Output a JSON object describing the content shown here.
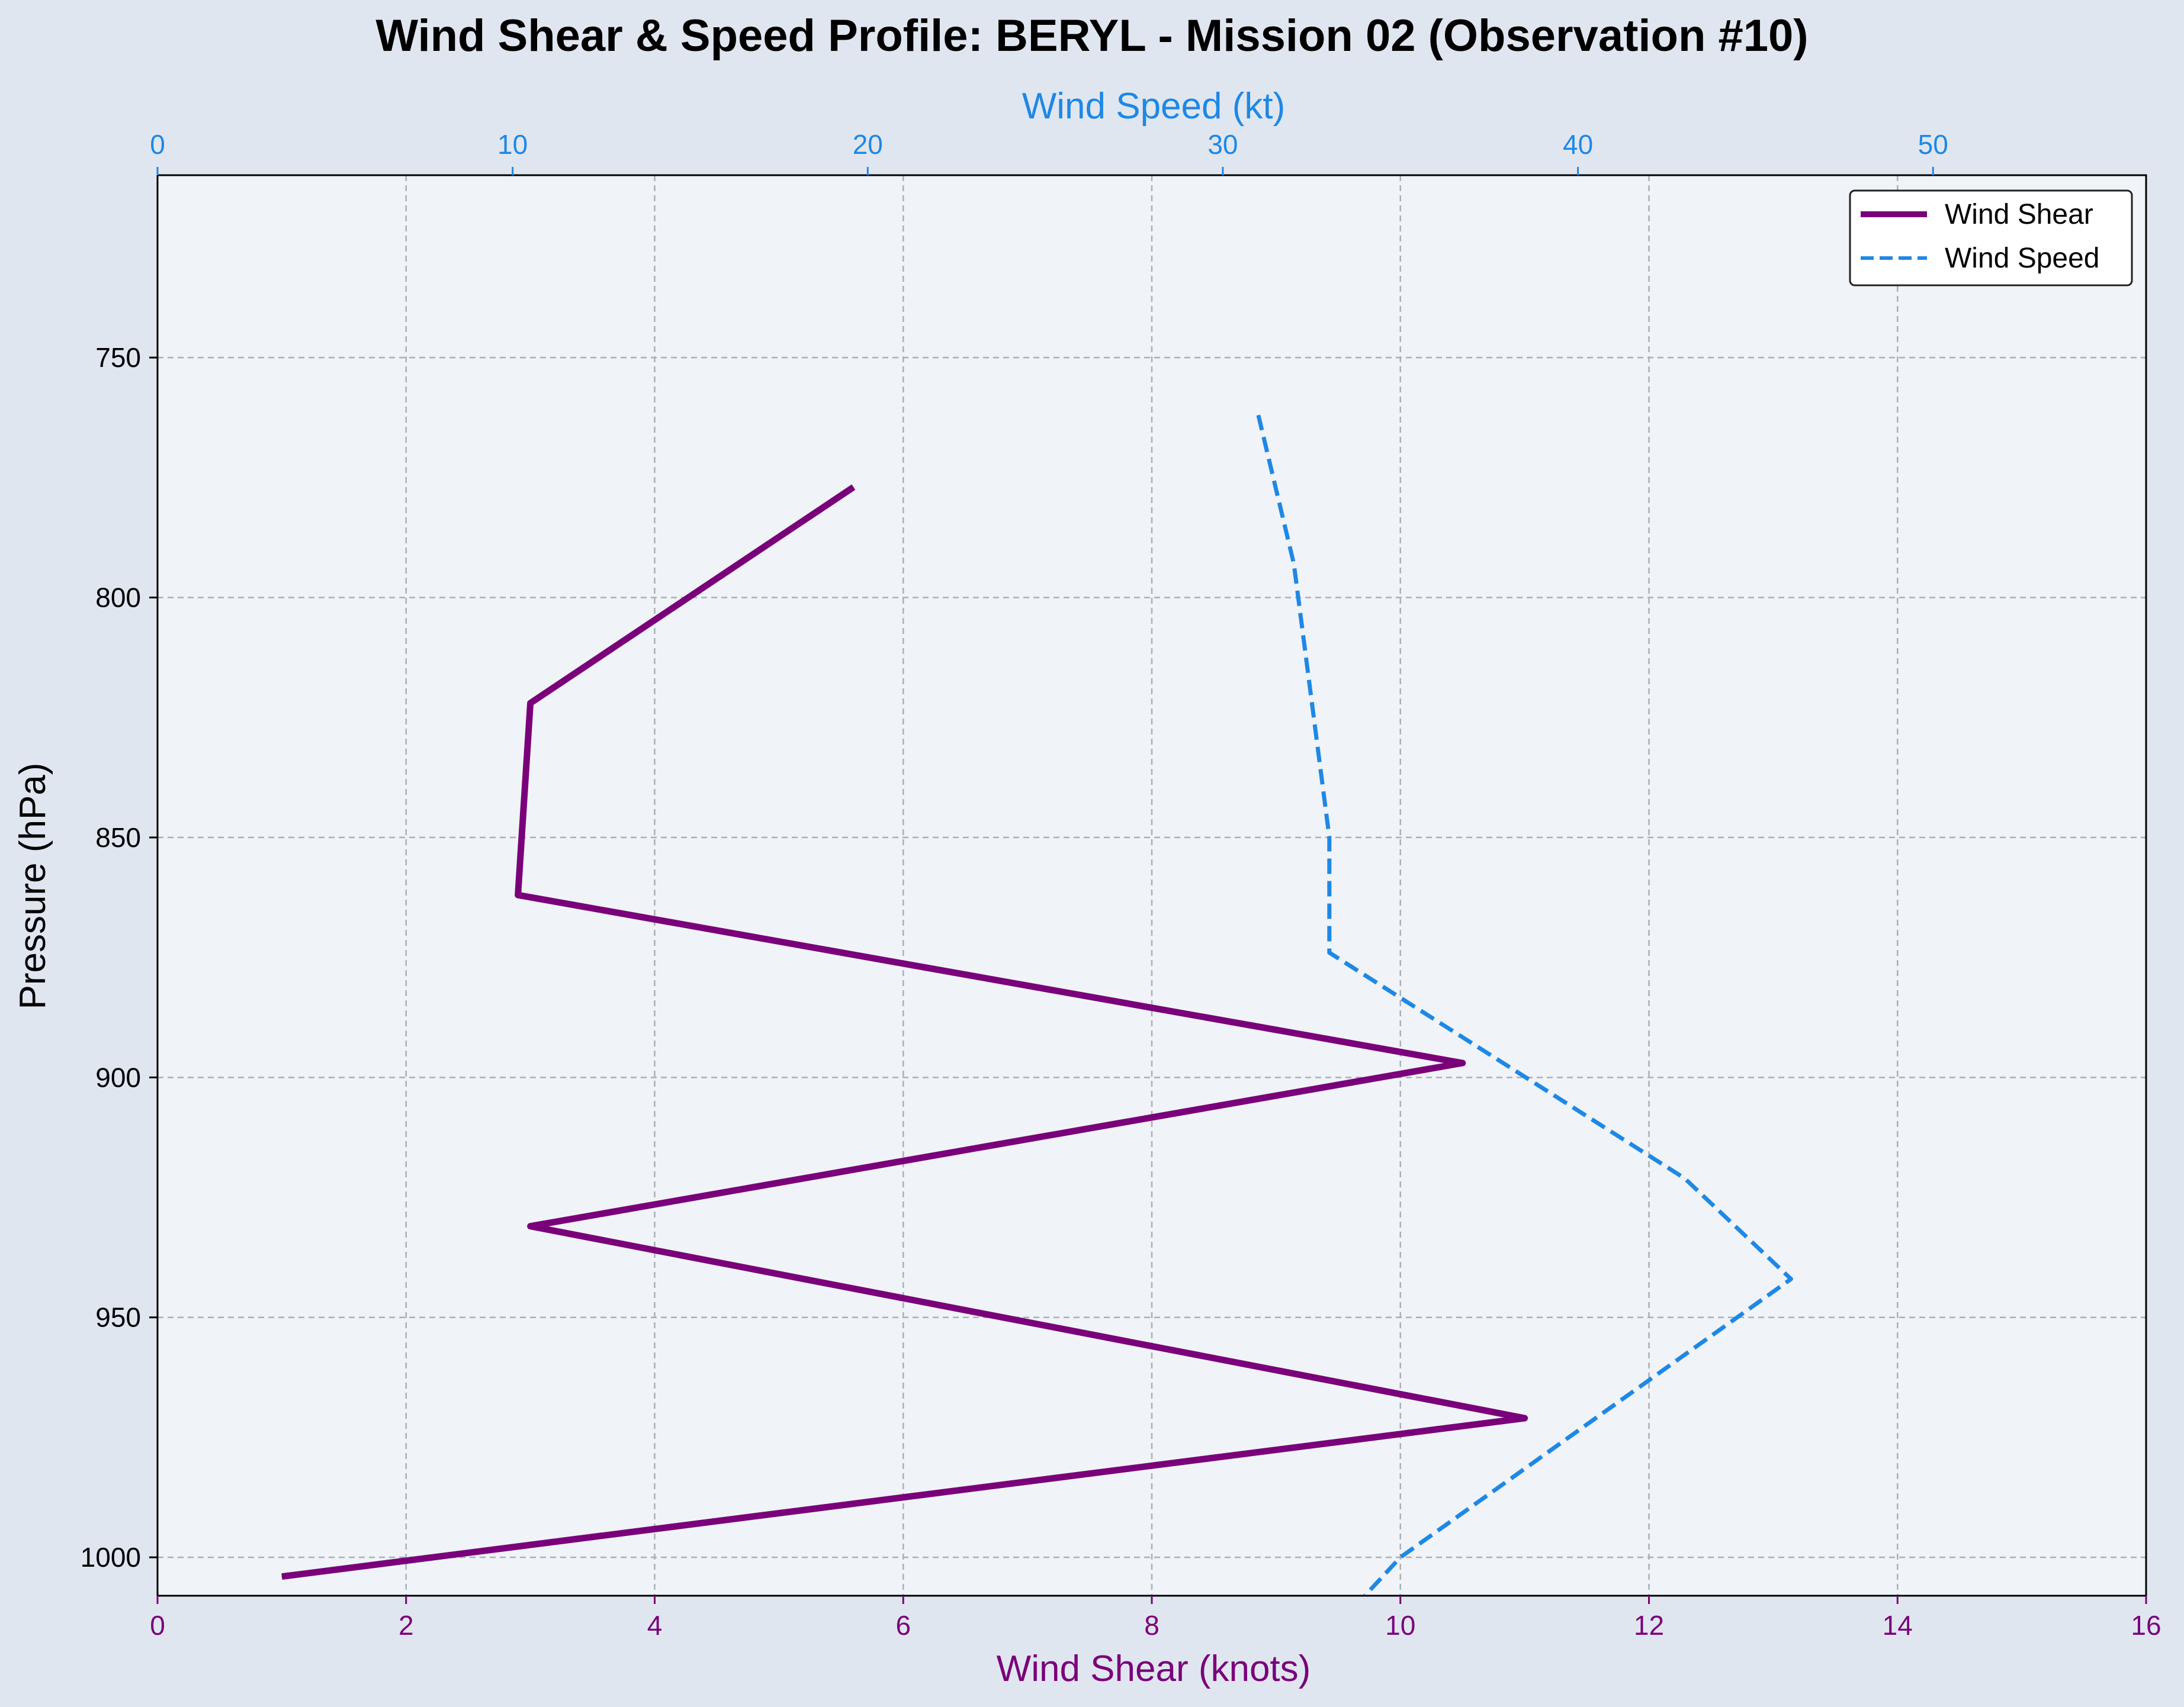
{
  "colors": {
    "figure_bg": "#e0e6f0",
    "plot_bg": "#f0f3f8",
    "shear": "#7a007a",
    "speed": "#1e88e5",
    "grid": "#a9b0b8",
    "text": "#000000"
  },
  "chart_data": {
    "type": "line",
    "title": "Wind Shear & Speed Profile: BERYL - Mission 02 (Observation #10)",
    "xlabel_bottom": "Wind Shear (knots)",
    "xlabel_top": "Wind Speed (kt)",
    "ylabel": "Pressure (hPa)",
    "xlim_bottom": [
      0,
      16
    ],
    "xlim_top": [
      0,
      56
    ],
    "ylim": [
      1008,
      712
    ],
    "y_inverted": true,
    "xticks_bottom": [
      "0",
      "2",
      "4",
      "6",
      "8",
      "10",
      "12",
      "14",
      "16"
    ],
    "xticks_top": [
      "0",
      "10",
      "20",
      "30",
      "40",
      "50"
    ],
    "yticks": [
      "750",
      "800",
      "850",
      "900",
      "950",
      "1000"
    ],
    "grid": true,
    "legend_position": "top-right",
    "series": [
      {
        "name": "Wind Shear",
        "axis": "bottom",
        "style": "solid",
        "points": [
          {
            "x": 5.6,
            "y": 777
          },
          {
            "x": 3.0,
            "y": 822
          },
          {
            "x": 2.9,
            "y": 862
          },
          {
            "x": 10.5,
            "y": 897
          },
          {
            "x": 3.0,
            "y": 931
          },
          {
            "x": 11.0,
            "y": 971
          },
          {
            "x": 1.0,
            "y": 1004
          }
        ]
      },
      {
        "name": "Wind Speed",
        "axis": "top",
        "style": "dashed",
        "points": [
          {
            "x": 31.0,
            "y": 762
          },
          {
            "x": 32.0,
            "y": 793
          },
          {
            "x": 33.0,
            "y": 850
          },
          {
            "x": 33.0,
            "y": 874
          },
          {
            "x": 43.0,
            "y": 921
          },
          {
            "x": 46.0,
            "y": 942
          },
          {
            "x": 35.0,
            "y": 1000
          },
          {
            "x": 34.0,
            "y": 1008
          }
        ]
      }
    ]
  }
}
